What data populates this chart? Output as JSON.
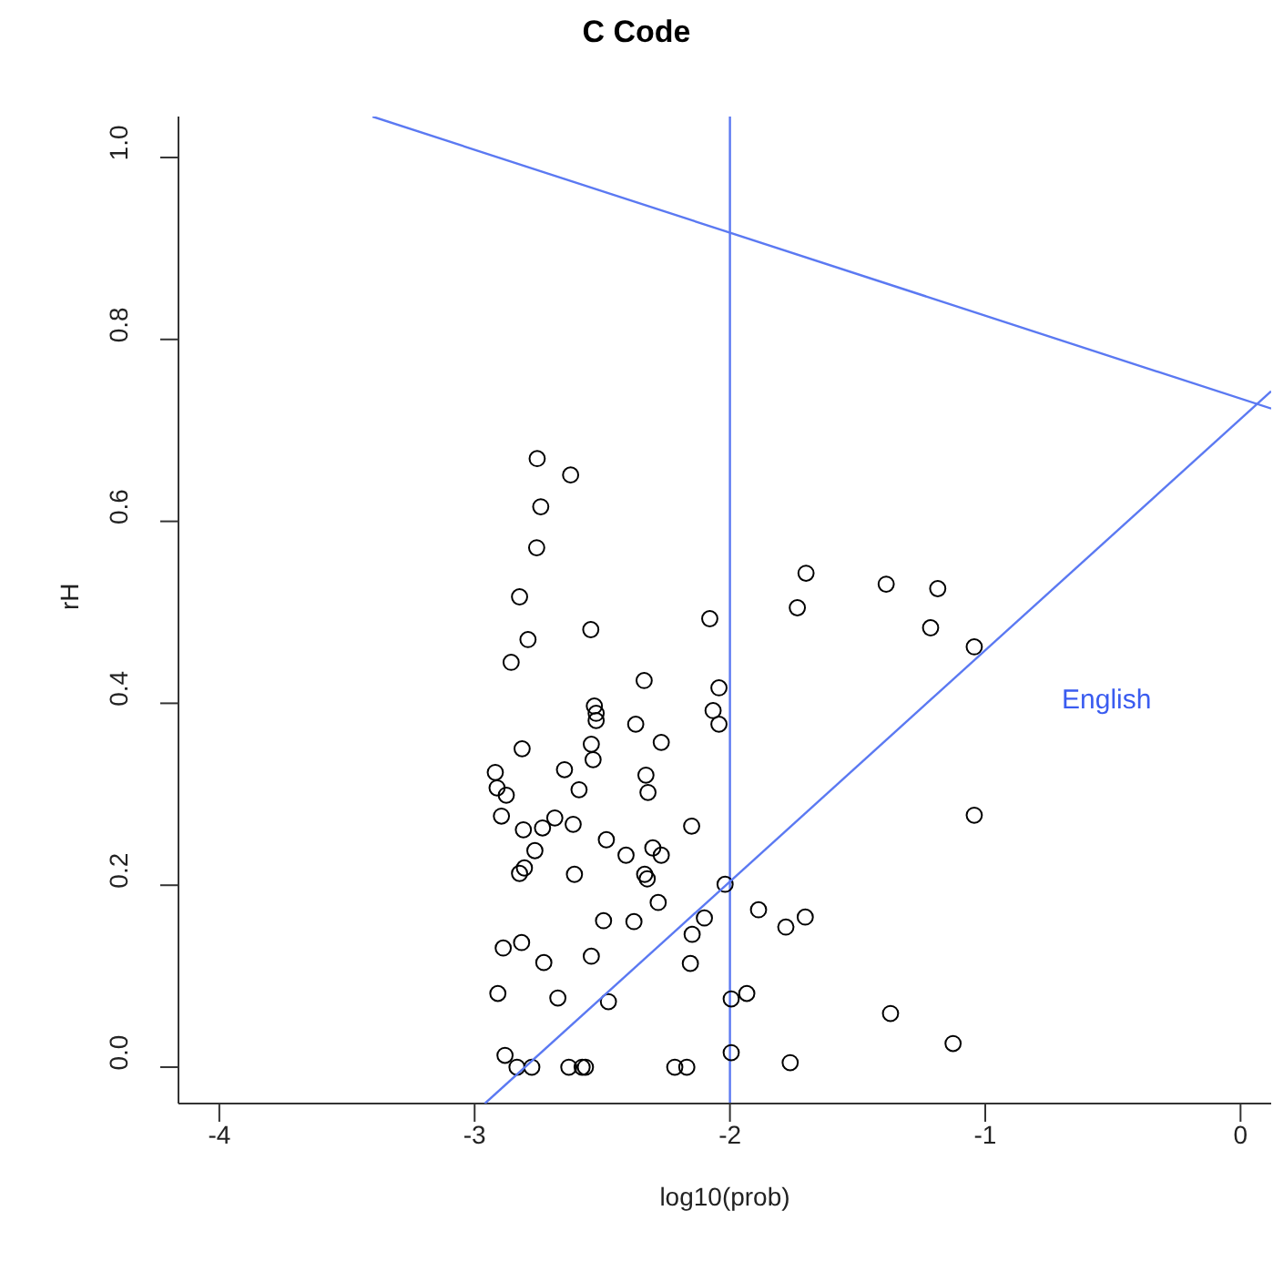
{
  "chart_data": {
    "type": "scatter",
    "title": "C Code",
    "xlabel": "log10(prob)",
    "ylabel": "rH",
    "xlim": [
      -4.16,
      0.12
    ],
    "ylim": [
      -0.04,
      1.045
    ],
    "xticks": [
      -4,
      -3,
      -2,
      -1,
      0
    ],
    "yticks": [
      {
        "value": 0,
        "label": "0.0"
      },
      {
        "value": 0.2,
        "label": "0.2"
      },
      {
        "value": 0.4,
        "label": "0.4"
      },
      {
        "value": 0.6,
        "label": "0.6"
      },
      {
        "value": 0.8,
        "label": "0.8"
      },
      {
        "value": 1,
        "label": "1.0"
      }
    ],
    "marker": "circle",
    "series": [
      {
        "color": "#000000",
        "x": [
          -2.755,
          -2.624,
          -2.741,
          -2.757,
          -2.824,
          -2.545,
          -2.791,
          -2.079,
          -1.736,
          -1.702,
          -2.857,
          -2.336,
          -2.043,
          -2.531,
          -2.524,
          -2.524,
          -2.066,
          -2.043,
          -2.369,
          -2.269,
          -2.814,
          -2.543,
          -2.536,
          -2.919,
          -2.912,
          -2.876,
          -2.648,
          -2.591,
          -2.329,
          -2.321,
          -2.895,
          -2.809,
          -2.734,
          -2.686,
          -2.614,
          -2.15,
          -2.764,
          -2.805,
          -2.824,
          -2.609,
          -2.484,
          -2.407,
          -2.302,
          -2.269,
          -2.334,
          -2.324,
          -2.281,
          -2.019,
          -1.888,
          -1.781,
          -1.705,
          -2.1,
          -2.148,
          -2.495,
          -2.376,
          -2.888,
          -2.816,
          -2.729,
          -2.543,
          -2.155,
          -2.909,
          -2.674,
          -2.476,
          -1.995,
          -1.934,
          -2.881,
          -2.834,
          -2.776,
          -2.631,
          -2.579,
          -2.566,
          -2.216,
          -2.169,
          -1.995,
          -1.764,
          -1.388,
          -1.186,
          -1.214,
          -1.043,
          -1.043,
          -1.371,
          -1.126
        ],
        "values": [
          0.669,
          0.651,
          0.616,
          0.571,
          0.517,
          0.481,
          0.47,
          0.493,
          0.505,
          0.543,
          0.445,
          0.425,
          0.417,
          0.397,
          0.389,
          0.381,
          0.392,
          0.377,
          0.377,
          0.357,
          0.35,
          0.355,
          0.338,
          0.324,
          0.307,
          0.299,
          0.327,
          0.305,
          0.321,
          0.302,
          0.276,
          0.261,
          0.263,
          0.274,
          0.267,
          0.265,
          0.238,
          0.219,
          0.213,
          0.212,
          0.25,
          0.233,
          0.241,
          0.233,
          0.212,
          0.207,
          0.181,
          0.201,
          0.173,
          0.154,
          0.165,
          0.164,
          0.146,
          0.161,
          0.16,
          0.131,
          0.137,
          0.115,
          0.122,
          0.114,
          0.081,
          0.076,
          0.072,
          0.075,
          0.081,
          0.013,
          0,
          0,
          0,
          0,
          0,
          0,
          0,
          0.016,
          0.005,
          0.531,
          0.526,
          0.483,
          0.462,
          0.277,
          0.059,
          0.026
        ]
      },
      {
        "type": "line",
        "marker": "none",
        "color": "#5b79f2",
        "x": [
          -3.4,
          0.12
        ],
        "values": [
          1.045,
          0.724
        ]
      },
      {
        "type": "line",
        "marker": "none",
        "color": "#5b79f2",
        "x": [
          -2.96,
          0.12
        ],
        "values": [
          -0.04,
          0.743
        ]
      }
    ],
    "ref_lines": [
      {
        "axis": "x",
        "value": -2,
        "color": "#5b79f2"
      }
    ],
    "annotations": [
      "English"
    ]
  }
}
